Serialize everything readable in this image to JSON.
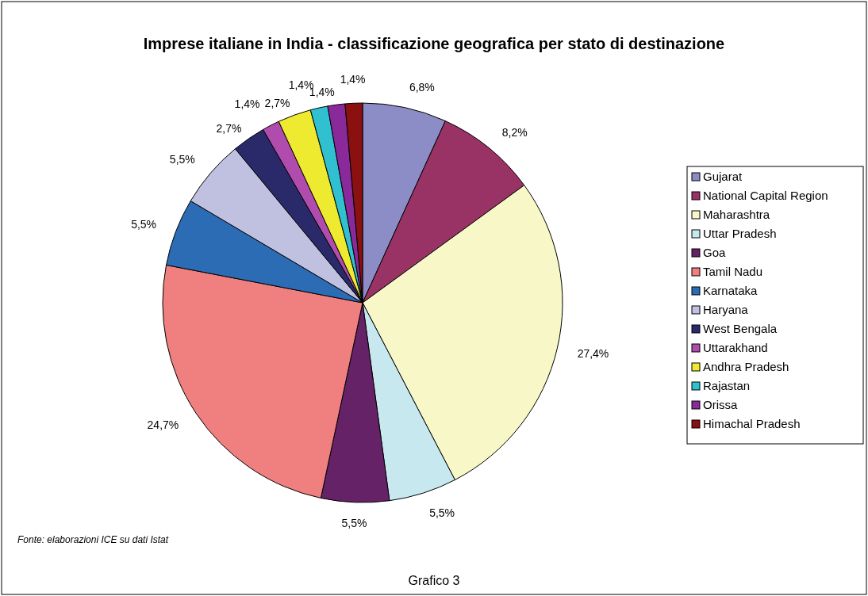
{
  "chart_data": {
    "type": "pie",
    "title": "Imprese italiane in India - classificazione geografica per stato di destinazione",
    "categories": [
      "Gujarat",
      "National Capital Region",
      "Maharashtra",
      "Uttar Pradesh",
      "Goa",
      "Tamil Nadu",
      "Karnataka",
      "Haryana",
      "West Bengala",
      "Uttarakhand",
      "Andhra Pradesh",
      "Rajastan",
      "Orissa",
      "Himachal Pradesh"
    ],
    "values": [
      6.8,
      8.2,
      27.4,
      5.5,
      5.5,
      24.7,
      5.5,
      5.5,
      2.7,
      1.4,
      2.7,
      1.4,
      1.4,
      1.4
    ],
    "value_labels": [
      "6,8%",
      "8,2%",
      "27,4%",
      "5,5%",
      "5,5%",
      "24,7%",
      "5,5%",
      "5,5%",
      "2,7%",
      "1,4%",
      "2,7%",
      "1,4%",
      "1,4%",
      "1,4%"
    ],
    "colors": [
      "#8c8cc6",
      "#993366",
      "#f7f7c8",
      "#c8e8f0",
      "#662266",
      "#f08080",
      "#2c6cb4",
      "#c0c0e0",
      "#2a2a6a",
      "#b04cae",
      "#eeea30",
      "#30c0d0",
      "#8a2a9a",
      "#8b1010"
    ],
    "legend": "right",
    "annotations": [
      "Fonte: elaborazioni ICE su dati Istat",
      "Grafico 3"
    ]
  }
}
